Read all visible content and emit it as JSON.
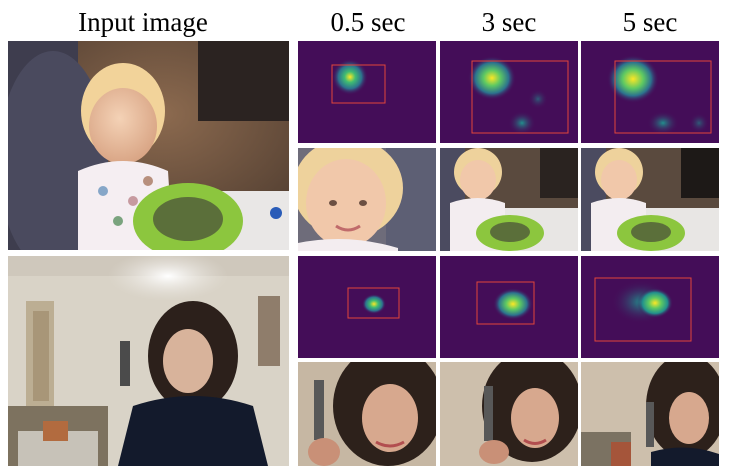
{
  "figure": {
    "columns": [
      {
        "label": "Input image"
      },
      {
        "label": "0.5 sec"
      },
      {
        "label": "3 sec"
      },
      {
        "label": "5 sec"
      }
    ],
    "rows": [
      {
        "input_image": "baby in a high chair with a green plate of food",
        "heatmaps": [
          {
            "duration": "0.5 sec",
            "colormap": "viridis",
            "box_color": "#e2453a"
          },
          {
            "duration": "3 sec",
            "colormap": "viridis",
            "box_color": "#e2453a"
          },
          {
            "duration": "5 sec",
            "colormap": "viridis",
            "box_color": "#e2453a"
          }
        ],
        "crops": [
          "0.5 sec crop of baby face",
          "3 sec crop",
          "5 sec crop"
        ]
      },
      {
        "input_image": "woman with long dark hair talking on a flip phone in a room",
        "heatmaps": [
          {
            "duration": "0.5 sec",
            "colormap": "viridis",
            "box_color": "#e2453a"
          },
          {
            "duration": "3 sec",
            "colormap": "viridis",
            "box_color": "#e2453a"
          },
          {
            "duration": "5 sec",
            "colormap": "viridis",
            "box_color": "#e2453a"
          }
        ],
        "crops": [
          "0.5 sec crop of woman face",
          "3 sec crop",
          "5 sec crop"
        ]
      }
    ]
  }
}
